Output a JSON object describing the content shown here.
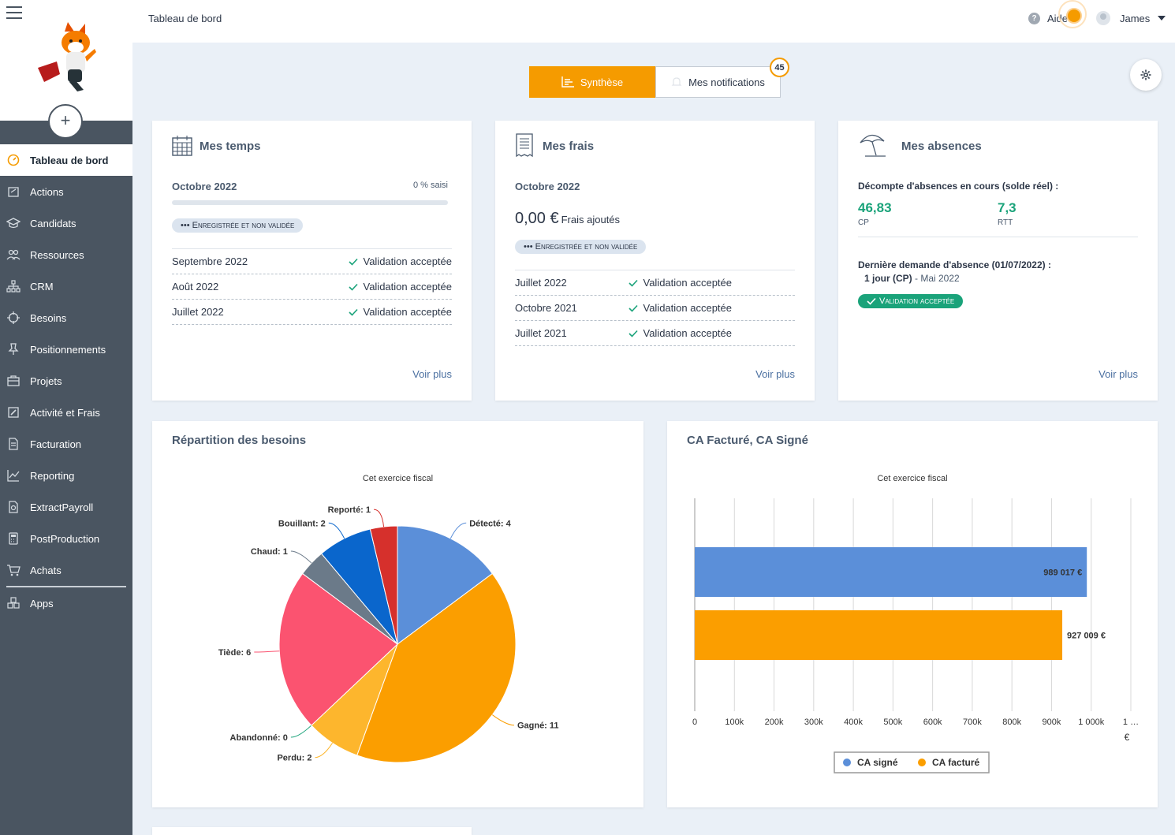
{
  "header": {
    "breadcrumb": "Tableau de bord",
    "help_label": "Aide",
    "user_name": "James"
  },
  "sidebar": {
    "items": [
      {
        "label": "Tableau de bord",
        "icon": "dashboard-icon"
      },
      {
        "label": "Actions",
        "icon": "actions-icon"
      },
      {
        "label": "Candidats",
        "icon": "graduation-cap-icon"
      },
      {
        "label": "Ressources",
        "icon": "people-icon"
      },
      {
        "label": "CRM",
        "icon": "sitemap-icon"
      },
      {
        "label": "Besoins",
        "icon": "crosshair-icon"
      },
      {
        "label": "Positionnements",
        "icon": "pin-icon"
      },
      {
        "label": "Projets",
        "icon": "briefcase-icon"
      },
      {
        "label": "Activité et Frais",
        "icon": "edit-icon"
      },
      {
        "label": "Facturation",
        "icon": "invoice-icon"
      },
      {
        "label": "Reporting",
        "icon": "line-chart-icon"
      },
      {
        "label": "ExtractPayroll",
        "icon": "document-icon"
      },
      {
        "label": "PostProduction",
        "icon": "calculator-icon"
      },
      {
        "label": "Achats",
        "icon": "cart-icon"
      },
      {
        "label": "Apps",
        "icon": "cubes-icon"
      }
    ]
  },
  "tabs": {
    "synthese": "Synthèse",
    "notifications": "Mes notifications",
    "notifications_count": "45"
  },
  "temps": {
    "title": "Mes temps",
    "period": "Octobre 2022",
    "percent_label": "0 % saisi",
    "progress": 0,
    "status": "••• Enregistrée et non validée",
    "rows": [
      {
        "period": "Septembre 2022",
        "status": "Validation acceptée"
      },
      {
        "period": "Août 2022",
        "status": "Validation acceptée"
      },
      {
        "period": "Juillet 2022",
        "status": "Validation acceptée"
      }
    ],
    "more": "Voir plus"
  },
  "frais": {
    "title": "Mes frais",
    "period": "Octobre 2022",
    "amount": "0,00 €",
    "amount_label": "Frais ajoutés",
    "status": "••• Enregistrée et non validée",
    "rows": [
      {
        "period": "Juillet 2022",
        "status": "Validation acceptée"
      },
      {
        "period": "Octobre 2021",
        "status": "Validation acceptée"
      },
      {
        "period": "Juillet 2021",
        "status": "Validation acceptée"
      }
    ],
    "more": "Voir plus"
  },
  "absences": {
    "title": "Mes absences",
    "decompte_label": "Décompte d'absences en cours (solde réel) :",
    "cp_value": "46,83",
    "cp_label": "CP",
    "rtt_value": "7,3",
    "rtt_label": "RTT",
    "last_request_label": "Dernière demande d'absence (01/07/2022) :",
    "last_request_amount": "1 jour (CP)",
    "last_request_period": " - Mai 2022",
    "last_request_status": "Validation acceptée",
    "more": "Voir plus"
  },
  "pie_card": {
    "title": "Répartition des besoins",
    "subtitle": "Cet exercice fiscal"
  },
  "bar_card": {
    "title": "CA Facturé, CA Signé",
    "subtitle": "Cet exercice fiscal"
  },
  "chart_data": [
    {
      "type": "pie",
      "title": "Répartition des besoins",
      "subtitle": "Cet exercice fiscal",
      "slices": [
        {
          "label": "Détecté",
          "value": 4,
          "color": "#5b8fd9"
        },
        {
          "label": "Gagné",
          "value": 11,
          "color": "#fb9e00"
        },
        {
          "label": "Perdu",
          "value": 2,
          "color": "#fdb62d"
        },
        {
          "label": "Abandonné",
          "value": 0,
          "color": "#1aa37a"
        },
        {
          "label": "Tiède",
          "value": 6,
          "color": "#fb5370"
        },
        {
          "label": "Chaud",
          "value": 1,
          "color": "#6b7a89"
        },
        {
          "label": "Bouillant",
          "value": 2,
          "color": "#0a66cc"
        },
        {
          "label": "Reporté",
          "value": 1,
          "color": "#d6302c"
        }
      ]
    },
    {
      "type": "bar",
      "orientation": "horizontal",
      "title": "CA Facturé, CA Signé",
      "subtitle": "Cet exercice fiscal",
      "unit": "€",
      "series": [
        {
          "name": "CA signé",
          "value": 989017,
          "label": "989 017 €",
          "color": "#5b8fd9"
        },
        {
          "name": "CA facturé",
          "value": 927009,
          "label": "927 009 €",
          "color": "#fb9e00"
        }
      ],
      "x_ticks": [
        "0",
        "100k",
        "200k",
        "300k",
        "400k",
        "500k",
        "600k",
        "700k",
        "800k",
        "900k",
        "1 000k",
        "1 …"
      ],
      "xlim": [
        0,
        1100000
      ],
      "legend": "bottom"
    }
  ]
}
